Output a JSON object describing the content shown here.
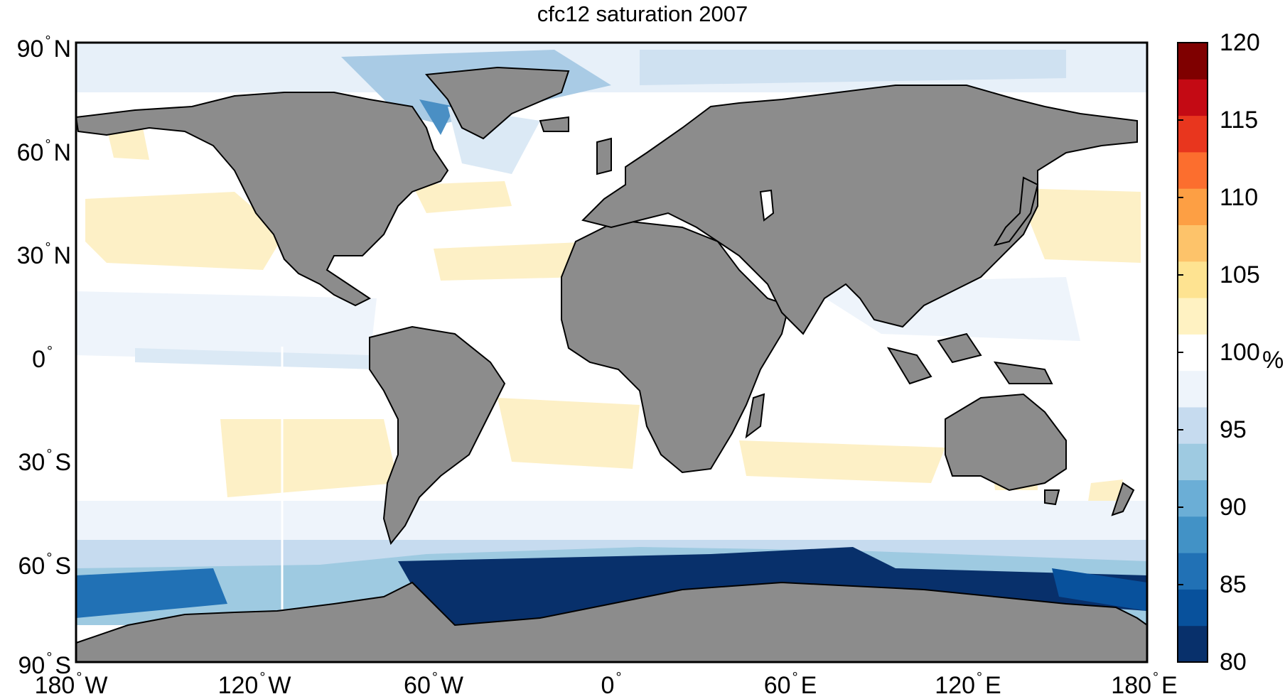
{
  "title": "cfc12 saturation 2007",
  "map": {
    "variable": "cfc12 saturation",
    "year": "2007",
    "land_color": "#8c8c8c",
    "coast_color": "#000000",
    "lat_labels": [
      {
        "deg": "90",
        "hem": "N"
      },
      {
        "deg": "60",
        "hem": "N"
      },
      {
        "deg": "30",
        "hem": "N"
      },
      {
        "deg": "0",
        "hem": ""
      },
      {
        "deg": "30",
        "hem": "S"
      },
      {
        "deg": "60",
        "hem": "S"
      },
      {
        "deg": "90",
        "hem": "S"
      }
    ],
    "lon_labels": [
      {
        "deg": "180",
        "hem": "W"
      },
      {
        "deg": "120",
        "hem": "W"
      },
      {
        "deg": "60",
        "hem": "W"
      },
      {
        "deg": "0",
        "hem": ""
      },
      {
        "deg": "60",
        "hem": "E"
      },
      {
        "deg": "120",
        "hem": "E"
      },
      {
        "deg": "180",
        "hem": "E"
      }
    ]
  },
  "colorbar": {
    "unit": "%",
    "min": 80,
    "max": 120,
    "ticks": [
      "80",
      "85",
      "90",
      "95",
      "100",
      "105",
      "110",
      "115",
      "120"
    ],
    "colors_low_to_high": [
      "#08306b",
      "#08519c",
      "#2171b5",
      "#4292c6",
      "#6baed6",
      "#9ecae1",
      "#c6dbef",
      "#eef4fb",
      "#ffffff",
      "#fff2c2",
      "#fee391",
      "#fdc36a",
      "#fd9f44",
      "#fc6e2e",
      "#e8361e",
      "#c40a14",
      "#7f0000"
    ]
  }
}
